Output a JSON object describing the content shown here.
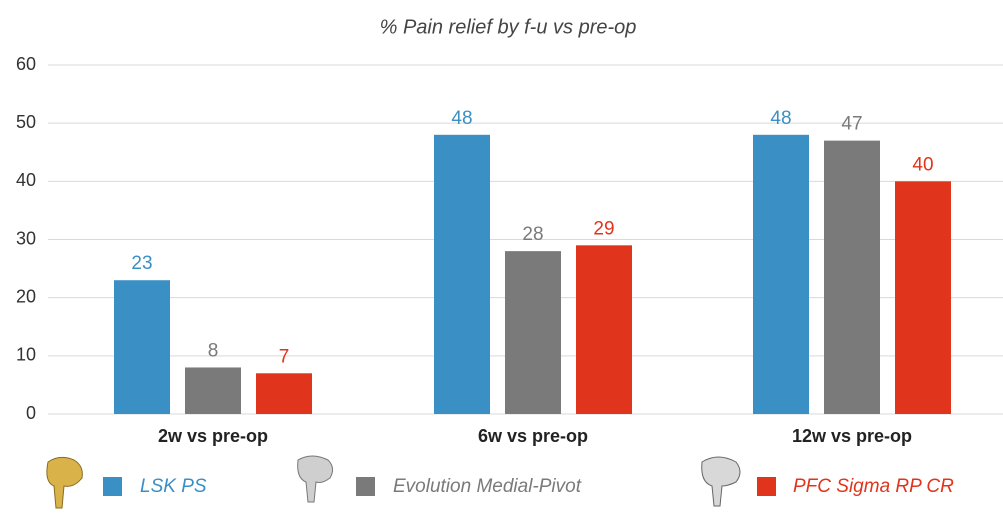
{
  "chart_data": {
    "type": "bar",
    "title": "% Pain relief by f-u vs pre-op",
    "categories": [
      "2w vs pre-op",
      "6w vs pre-op",
      "12w vs pre-op"
    ],
    "series": [
      {
        "name": "LSK PS",
        "color": "#3a8fc4",
        "values": [
          23,
          48,
          48
        ]
      },
      {
        "name": "Evolution Medial-Pivot",
        "color": "#7a7a7a",
        "values": [
          8,
          28,
          47
        ]
      },
      {
        "name": "PFC Sigma RP CR",
        "color": "#e0341c",
        "values": [
          7,
          29,
          40
        ]
      }
    ],
    "ylim": [
      0,
      60
    ],
    "yticks": [
      0,
      10,
      20,
      30,
      40,
      50,
      60
    ],
    "grid": true
  }
}
